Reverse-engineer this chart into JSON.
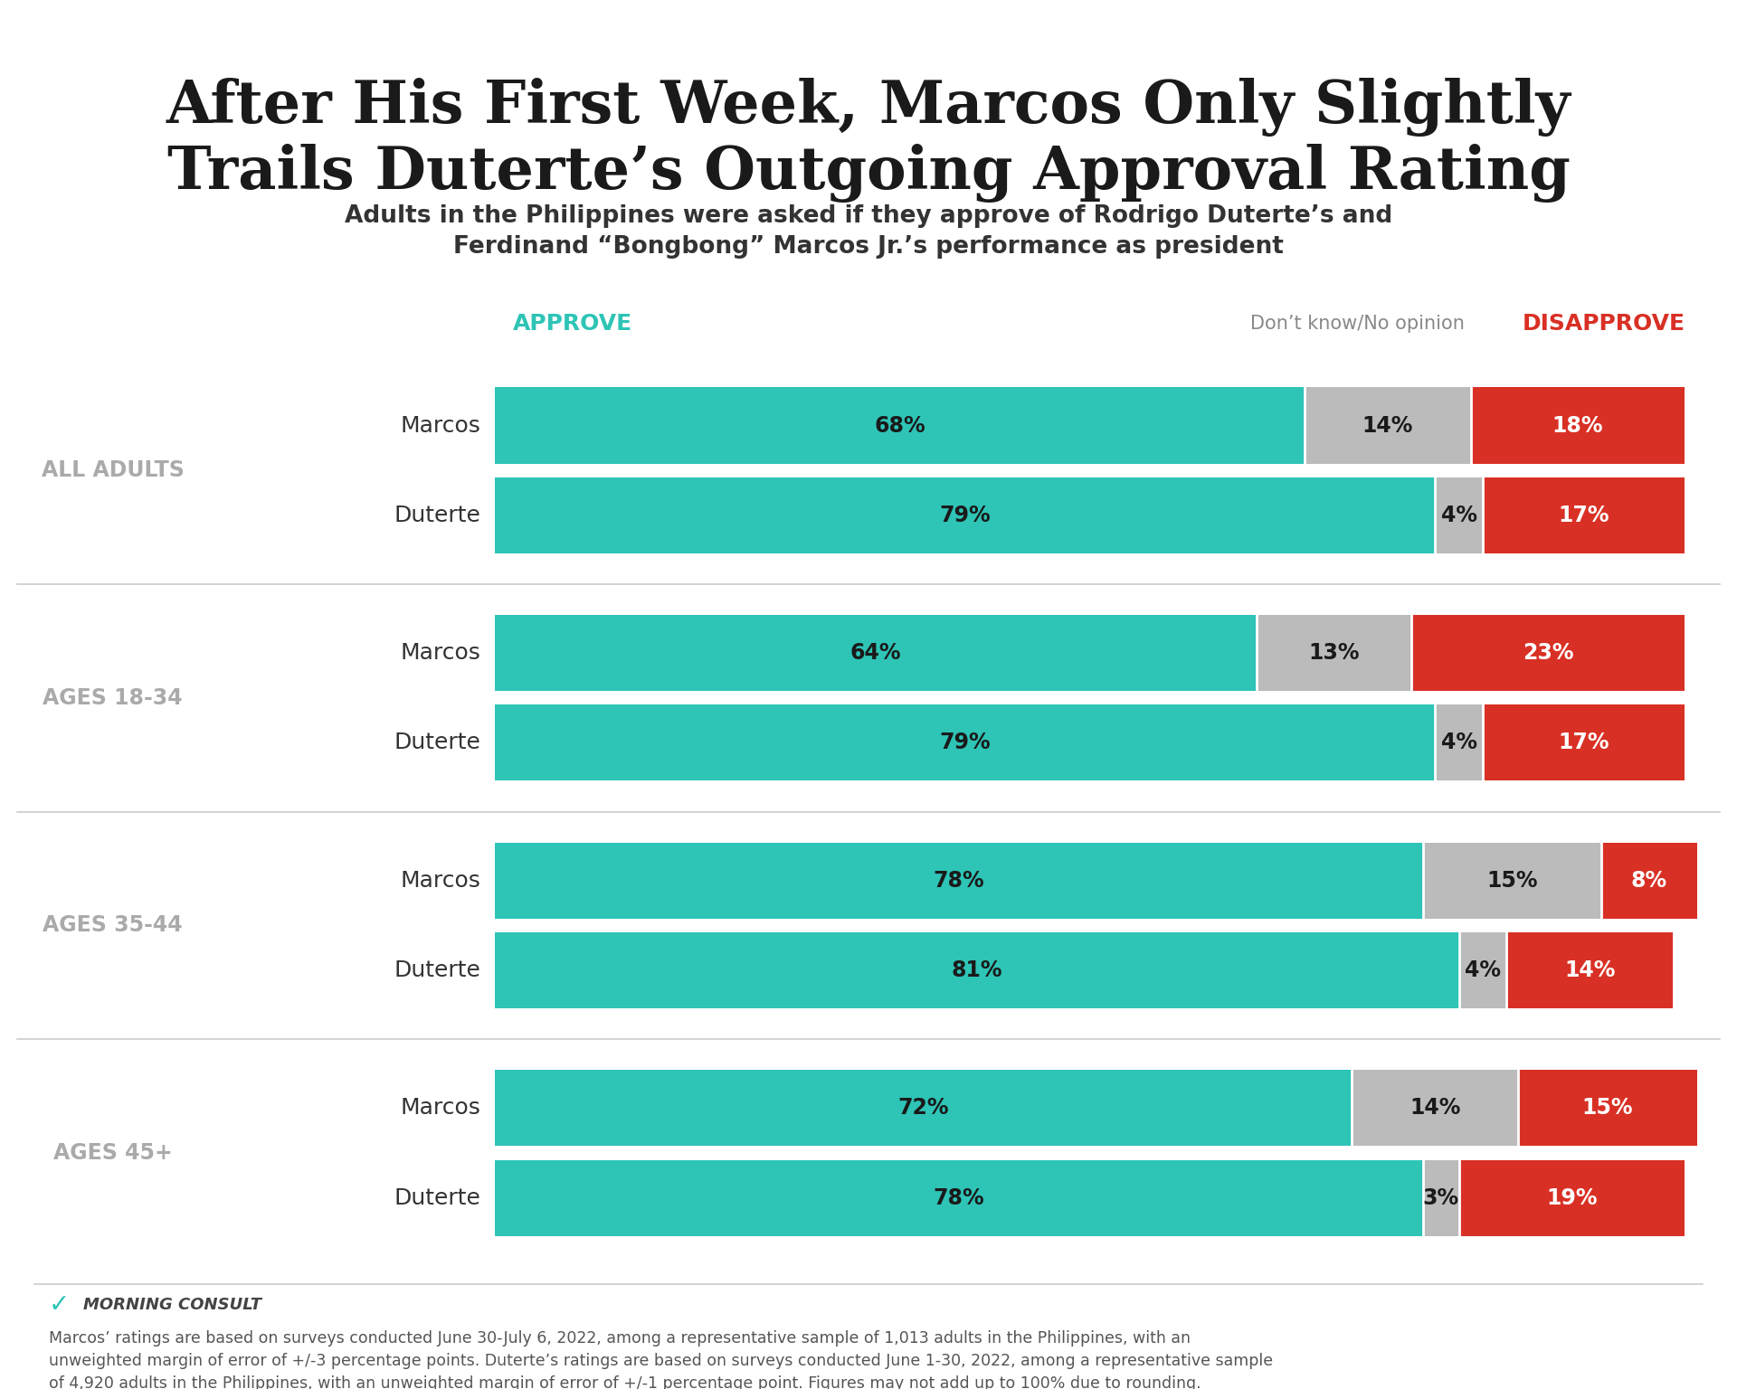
{
  "title": "After His First Week, Marcos Only Slightly\nTrails Duterte’s Outgoing Approval Rating",
  "subtitle": "Adults in the Philippines were asked if they approve of Rodrigo Duterte’s and\nFerdinand “Bongbong” Marcos Jr.’s performance as president",
  "groups": [
    {
      "label": "ALL ADULTS",
      "rows": [
        {
          "name": "Marcos",
          "approve": 68,
          "dontknow": 14,
          "disapprove": 18
        },
        {
          "name": "Duterte",
          "approve": 79,
          "dontknow": 4,
          "disapprove": 17
        }
      ]
    },
    {
      "label": "AGES 18-34",
      "rows": [
        {
          "name": "Marcos",
          "approve": 64,
          "dontknow": 13,
          "disapprove": 23
        },
        {
          "name": "Duterte",
          "approve": 79,
          "dontknow": 4,
          "disapprove": 17
        }
      ]
    },
    {
      "label": "AGES 35-44",
      "rows": [
        {
          "name": "Marcos",
          "approve": 78,
          "dontknow": 15,
          "disapprove": 8
        },
        {
          "name": "Duterte",
          "approve": 81,
          "dontknow": 4,
          "disapprove": 14
        }
      ]
    },
    {
      "label": "AGES 45+",
      "rows": [
        {
          "name": "Marcos",
          "approve": 72,
          "dontknow": 14,
          "disapprove": 15
        },
        {
          "name": "Duterte",
          "approve": 78,
          "dontknow": 3,
          "disapprove": 19
        }
      ]
    }
  ],
  "approve_color": "#2EC4B6",
  "dontknow_color": "#BBBBBB",
  "disapprove_color": "#D93025",
  "approve_label": "APPROVE",
  "dontknow_label": "Don’t know/No opinion",
  "disapprove_label": "DISAPPROVE",
  "approve_label_color": "#2EC4B6",
  "disapprove_label_color": "#D93025",
  "dontknow_label_color": "#888888",
  "group_label_color": "#AAAAAA",
  "bar_name_color": "#333333",
  "background_color": "#FFFFFF",
  "top_bar_color": "#2EC4B6",
  "footer_text": "Marcos’ ratings are based on surveys conducted June 30-July 6, 2022, among a representative sample of 1,013 adults in the Philippines, with an\nunweighted margin of error of +/-3 percentage points. Duterte’s ratings are based on surveys conducted June 1-30, 2022, among a representative sample\nof 4,920 adults in the Philippines, with an unweighted margin of error of +/-1 percentage point. Figures may not add up to 100% due to rounding.",
  "morning_consult_label": "MORNING CONSULT"
}
